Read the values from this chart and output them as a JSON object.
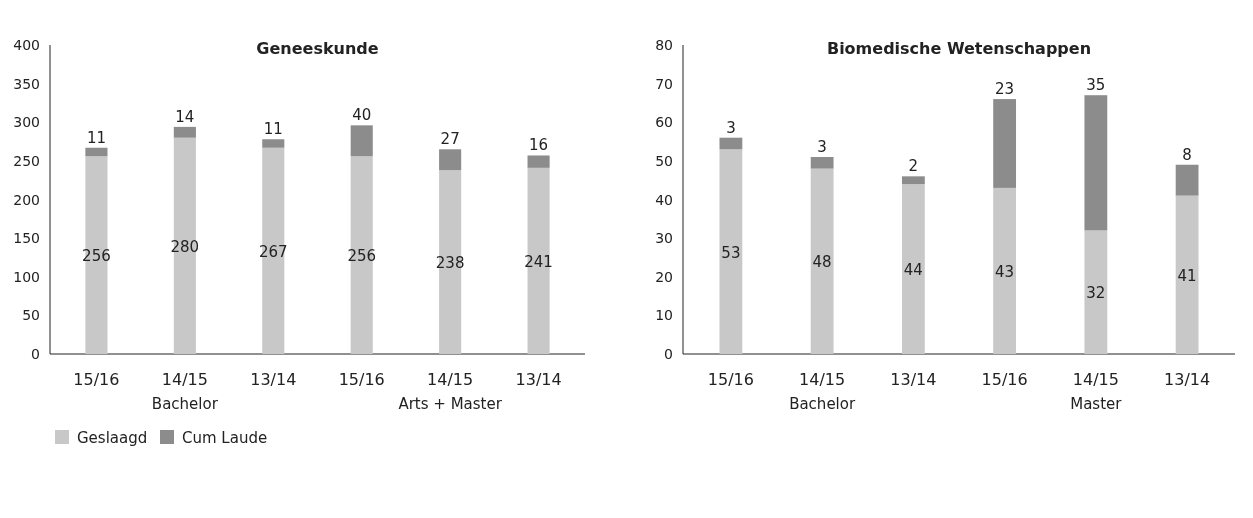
{
  "chart_data": [
    {
      "type": "bar",
      "stacked": true,
      "title": "Geneeskunde",
      "categories": [
        "15/16",
        "14/15",
        "13/14",
        "15/16",
        "14/15",
        "13/14"
      ],
      "series": [
        {
          "name": "Geslaagd",
          "color": "#c8c8c8",
          "values": [
            256,
            280,
            267,
            256,
            238,
            241
          ]
        },
        {
          "name": "Cum Laude",
          "color": "#8c8c8c",
          "values": [
            11,
            14,
            11,
            40,
            27,
            16
          ]
        }
      ],
      "ylim": [
        0,
        400
      ],
      "yticks": [
        0,
        50,
        100,
        150,
        200,
        250,
        300,
        350,
        400
      ],
      "data_labels": true,
      "legend": "bottom",
      "annotations": [
        "Bachelor",
        "Arts + Master"
      ]
    },
    {
      "type": "bar",
      "stacked": true,
      "title": "Biomedische Wetenschappen",
      "categories": [
        "15/16",
        "14/15",
        "13/14",
        "15/16",
        "14/15",
        "13/14"
      ],
      "series": [
        {
          "color": "#c8c8c8",
          "values": [
            53,
            48,
            44,
            43,
            32,
            41
          ]
        },
        {
          "color": "#8c8c8c",
          "values": [
            3,
            3,
            2,
            23,
            35,
            8
          ]
        }
      ],
      "ylim": [
        0,
        80
      ],
      "yticks": [
        0,
        10,
        20,
        30,
        40,
        50,
        60,
        70,
        80
      ],
      "data_labels": true,
      "annotations": [
        "Bachelor",
        "Master"
      ]
    }
  ]
}
